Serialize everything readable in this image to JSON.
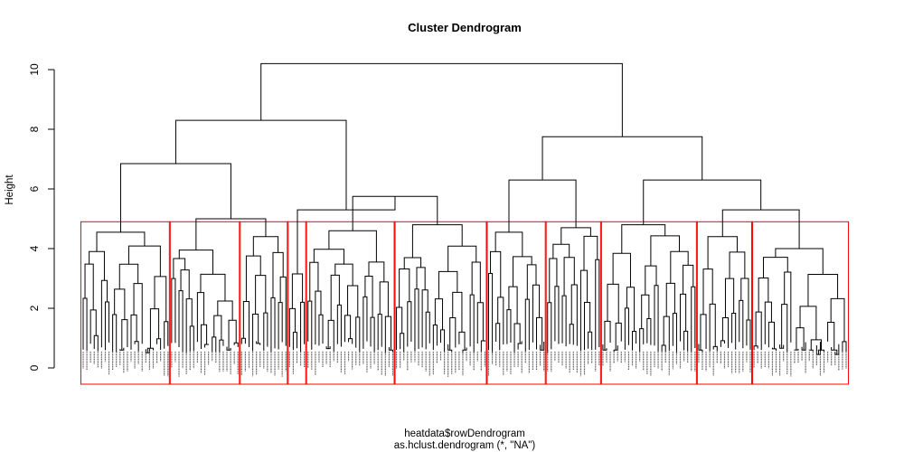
{
  "chart_data": {
    "type": "dendrogram",
    "title": "Cluster Dendrogram",
    "ylabel": "Height",
    "xlabel": "heatdata$rowDendrogram",
    "sub": "as.hclust.dendrogram (*, \"NA\")",
    "ylim": [
      0,
      10.5
    ],
    "yticks": [
      0,
      2,
      4,
      6,
      8,
      10
    ],
    "cut_height": 4.9,
    "cluster_box_color": "#ff0000",
    "line_color": "#000000",
    "clusters": [
      {
        "leaves": 24,
        "height": 4.55
      },
      {
        "leaves": 19,
        "height": 3.95
      },
      {
        "leaves": 13,
        "height": 4.4
      },
      {
        "leaves": 5,
        "height": 3.15
      },
      {
        "leaves": 24,
        "height": 4.6
      },
      {
        "leaves": 25,
        "height": 4.8
      },
      {
        "leaves": 16,
        "height": 4.55
      },
      {
        "leaves": 15,
        "height": 4.7
      },
      {
        "leaves": 26,
        "height": 4.8
      },
      {
        "leaves": 15,
        "height": 4.4
      },
      {
        "leaves": 26,
        "height": 4.0
      }
    ],
    "merges": [
      {
        "id": "m1",
        "left": "c2",
        "right": "c3",
        "height": 5.0
      },
      {
        "id": "m2",
        "left": "c1",
        "right": "m1",
        "height": 6.85
      },
      {
        "id": "m3",
        "left": "c5",
        "right": "c6",
        "height": 5.75
      },
      {
        "id": "m4",
        "left": "c4",
        "right": "m3",
        "height": 5.3
      },
      {
        "id": "m5",
        "left": "m2",
        "right": "m4",
        "height": 8.3
      },
      {
        "id": "m6",
        "left": "c7",
        "right": "c8",
        "height": 6.3
      },
      {
        "id": "m7",
        "left": "c10",
        "right": "c11",
        "height": 5.3
      },
      {
        "id": "m8",
        "left": "c9",
        "right": "m7",
        "height": 6.3
      },
      {
        "id": "m9",
        "left": "m6",
        "right": "m8",
        "height": 7.75
      },
      {
        "id": "m10",
        "left": "m5",
        "right": "m9",
        "height": 10.2
      }
    ]
  }
}
